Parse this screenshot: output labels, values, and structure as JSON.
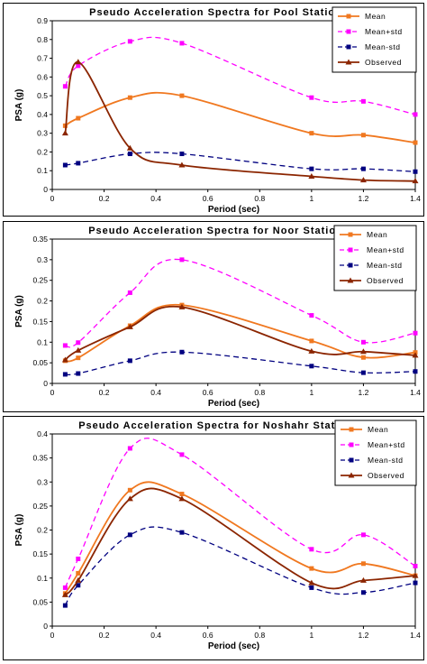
{
  "chart_data": [
    {
      "type": "line",
      "title": "Pseudo Acceleration Spectra for Pool Station",
      "xlabel": "Period (sec)",
      "ylabel": "PSA (g)",
      "xlim": [
        0,
        1.4
      ],
      "ylim": [
        0,
        0.9
      ],
      "xticks": [
        0,
        0.2,
        0.4,
        0.6,
        0.8,
        1,
        1.2,
        1.4
      ],
      "yticks": [
        0,
        0.1,
        0.2,
        0.3,
        0.4,
        0.5,
        0.6,
        0.7,
        0.8,
        0.9
      ],
      "series": [
        {
          "name": "Mean",
          "color": "#f07820",
          "marker": "square",
          "dash": "solid",
          "x": [
            0.05,
            0.1,
            0.3,
            0.5,
            1.0,
            1.2,
            1.4
          ],
          "y": [
            0.34,
            0.38,
            0.49,
            0.5,
            0.3,
            0.29,
            0.25
          ]
        },
        {
          "name": "Mean+std",
          "color": "#ff00ff",
          "marker": "square",
          "dash": "dashed",
          "x": [
            0.05,
            0.1,
            0.3,
            0.5,
            1.0,
            1.2,
            1.4
          ],
          "y": [
            0.55,
            0.66,
            0.79,
            0.78,
            0.49,
            0.47,
            0.4
          ]
        },
        {
          "name": "Mean-std",
          "color": "#000080",
          "marker": "square",
          "dash": "dashed",
          "x": [
            0.05,
            0.1,
            0.3,
            0.5,
            1.0,
            1.2,
            1.4
          ],
          "y": [
            0.13,
            0.14,
            0.19,
            0.19,
            0.11,
            0.11,
            0.095
          ]
        },
        {
          "name": "Observed",
          "color": "#8b2500",
          "marker": "triangle",
          "dash": "solid",
          "x": [
            0.05,
            0.1,
            0.3,
            0.5,
            1.0,
            1.2,
            1.4
          ],
          "y": [
            0.3,
            0.68,
            0.22,
            0.13,
            0.07,
            0.05,
            0.045
          ]
        }
      ],
      "legend": "top-right",
      "grid": false
    },
    {
      "type": "line",
      "title": "Pseudo Acceleration Spectra for Noor Station",
      "xlabel": "Period (sec)",
      "ylabel": "PSA (g)",
      "xlim": [
        0,
        1.4
      ],
      "ylim": [
        0,
        0.35
      ],
      "xticks": [
        0,
        0.2,
        0.4,
        0.6,
        0.8,
        1,
        1.2,
        1.4
      ],
      "yticks": [
        0,
        0.05,
        0.1,
        0.15,
        0.2,
        0.25,
        0.3,
        0.35
      ],
      "series": [
        {
          "name": "Mean",
          "color": "#f07820",
          "marker": "square",
          "dash": "solid",
          "x": [
            0.05,
            0.1,
            0.3,
            0.5,
            1.0,
            1.2,
            1.4
          ],
          "y": [
            0.055,
            0.062,
            0.14,
            0.19,
            0.103,
            0.063,
            0.075
          ]
        },
        {
          "name": "Mean+std",
          "color": "#ff00ff",
          "marker": "square",
          "dash": "dashed",
          "x": [
            0.05,
            0.1,
            0.3,
            0.5,
            1.0,
            1.2,
            1.4
          ],
          "y": [
            0.092,
            0.099,
            0.22,
            0.3,
            0.165,
            0.1,
            0.122
          ]
        },
        {
          "name": "Mean-std",
          "color": "#000080",
          "marker": "square",
          "dash": "dashed",
          "x": [
            0.05,
            0.1,
            0.3,
            0.5,
            1.0,
            1.2,
            1.4
          ],
          "y": [
            0.022,
            0.024,
            0.055,
            0.076,
            0.042,
            0.026,
            0.029
          ]
        },
        {
          "name": "Observed",
          "color": "#8b2500",
          "marker": "triangle",
          "dash": "solid",
          "x": [
            0.05,
            0.1,
            0.3,
            0.5,
            1.0,
            1.2,
            1.4
          ],
          "y": [
            0.057,
            0.08,
            0.137,
            0.185,
            0.078,
            0.077,
            0.068
          ]
        }
      ],
      "legend": "top-right",
      "grid": false
    },
    {
      "type": "line",
      "title": "Pseudo Acceleration Spectra for Noshahr Station",
      "xlabel": "Period (sec)",
      "ylabel": "PSA (g)",
      "xlim": [
        0,
        1.4
      ],
      "ylim": [
        0,
        0.4
      ],
      "xticks": [
        0,
        0.2,
        0.4,
        0.6,
        0.8,
        1,
        1.2,
        1.4
      ],
      "yticks": [
        0,
        0.05,
        0.1,
        0.15,
        0.2,
        0.25,
        0.3,
        0.35,
        0.4
      ],
      "series": [
        {
          "name": "Mean",
          "color": "#f07820",
          "marker": "square",
          "dash": "solid",
          "x": [
            0.05,
            0.1,
            0.3,
            0.5,
            1.0,
            1.2,
            1.4
          ],
          "y": [
            0.068,
            0.11,
            0.283,
            0.275,
            0.12,
            0.13,
            0.105
          ]
        },
        {
          "name": "Mean+std",
          "color": "#ff00ff",
          "marker": "square",
          "dash": "dashed",
          "x": [
            0.05,
            0.1,
            0.3,
            0.5,
            1.0,
            1.2,
            1.4
          ],
          "y": [
            0.08,
            0.14,
            0.37,
            0.357,
            0.16,
            0.19,
            0.125
          ]
        },
        {
          "name": "Mean-std",
          "color": "#000080",
          "marker": "square",
          "dash": "dashed",
          "x": [
            0.05,
            0.1,
            0.3,
            0.5,
            1.0,
            1.2,
            1.4
          ],
          "y": [
            0.043,
            0.085,
            0.19,
            0.195,
            0.08,
            0.07,
            0.09
          ]
        },
        {
          "name": "Observed",
          "color": "#8b2500",
          "marker": "triangle",
          "dash": "solid",
          "x": [
            0.05,
            0.1,
            0.3,
            0.5,
            1.0,
            1.2,
            1.4
          ],
          "y": [
            0.065,
            0.095,
            0.265,
            0.265,
            0.09,
            0.095,
            0.105
          ]
        }
      ],
      "legend": "top-right",
      "grid": false
    }
  ]
}
